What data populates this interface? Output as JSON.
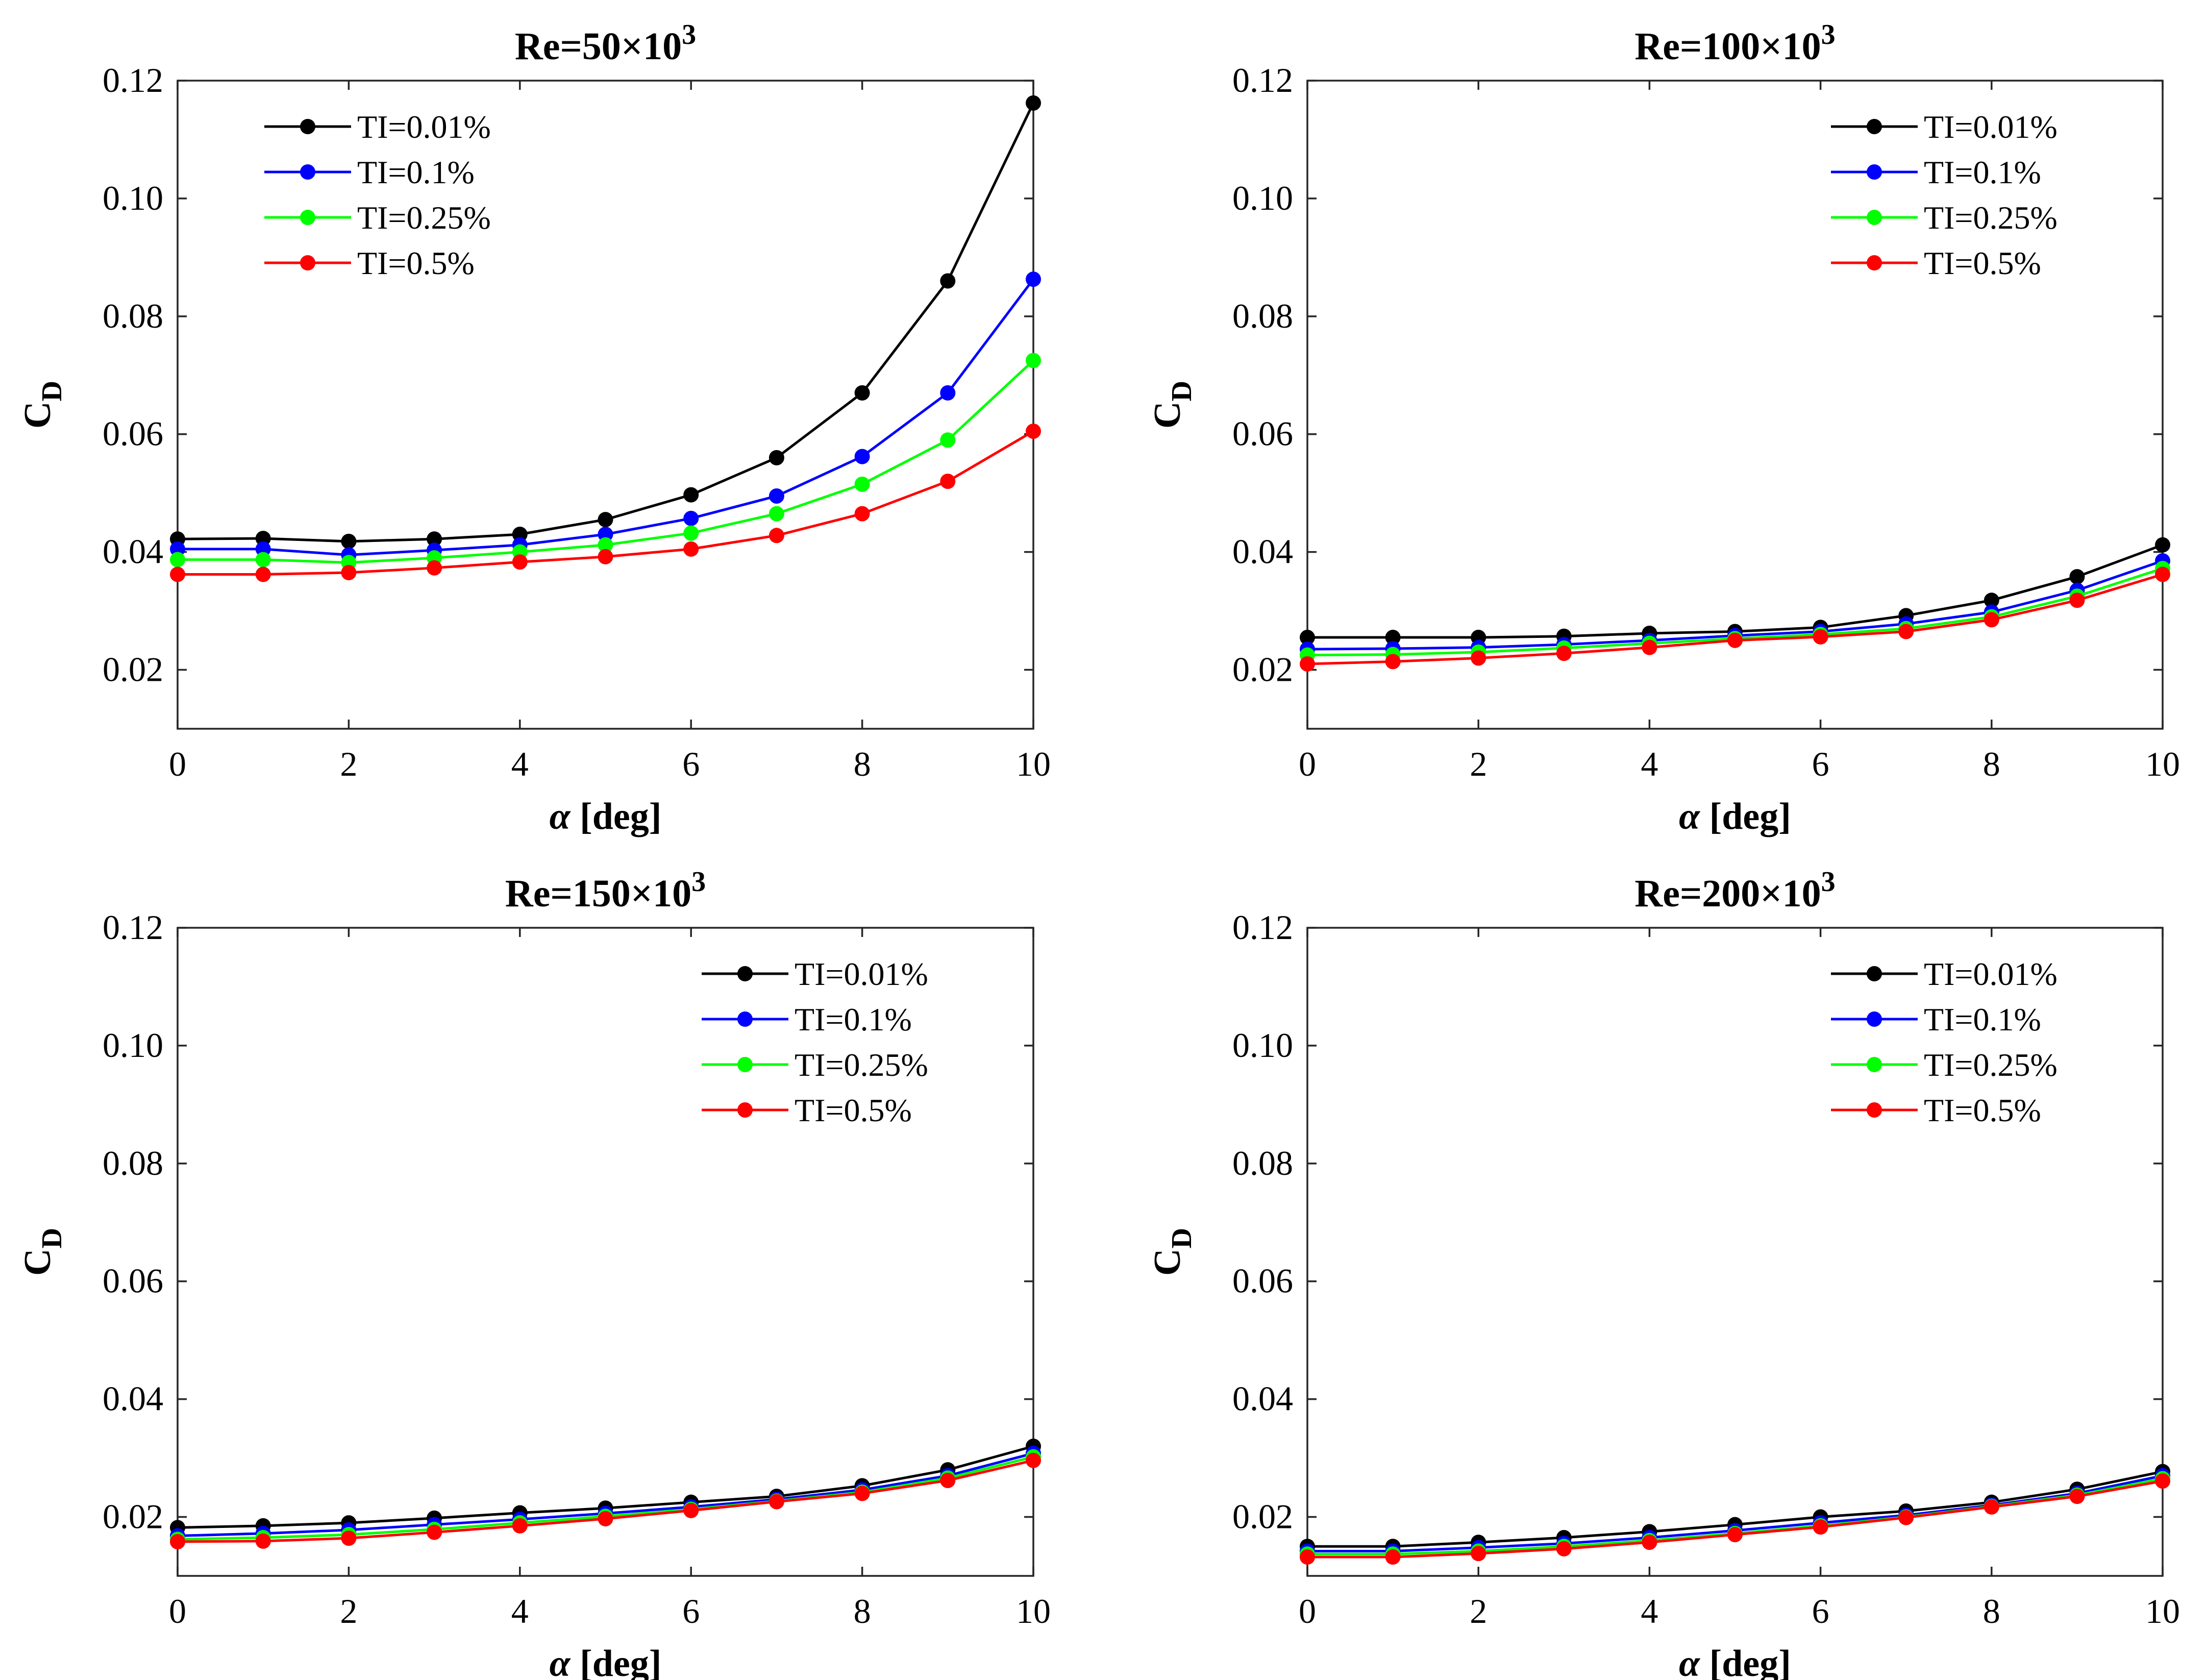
{
  "chart_data": [
    {
      "type": "line",
      "title": "Re=50×10",
      "title_sup": "3",
      "xlabel_symbol": "α",
      "xlabel_unit": " [deg]",
      "ylabel": "C",
      "ylabel_sub": "D",
      "xlim": [
        0,
        10
      ],
      "ylim": [
        0.01,
        0.12
      ],
      "xticks": [
        "0",
        "2",
        "4",
        "6",
        "8",
        "10"
      ],
      "yticks": [
        "0.02",
        "0.04",
        "0.06",
        "0.08",
        "0.10",
        "0.12"
      ],
      "legend_position": "top-left",
      "x": [
        0,
        1,
        2,
        3,
        4,
        5,
        6,
        7,
        8,
        9,
        10
      ],
      "series": [
        {
          "name": "TI=0.01%",
          "color": "#000000",
          "values": [
            0.0422,
            0.0423,
            0.0418,
            0.0422,
            0.043,
            0.0455,
            0.0497,
            0.056,
            0.067,
            0.086,
            0.1162
          ]
        },
        {
          "name": "TI=0.1%",
          "color": "#0000ff",
          "values": [
            0.0405,
            0.0405,
            0.0395,
            0.0403,
            0.0412,
            0.043,
            0.0457,
            0.0495,
            0.0562,
            0.067,
            0.0863
          ]
        },
        {
          "name": "TI=0.25%",
          "color": "#00ff00",
          "values": [
            0.0387,
            0.0387,
            0.0382,
            0.039,
            0.04,
            0.0412,
            0.0432,
            0.0465,
            0.0515,
            0.059,
            0.0725
          ]
        },
        {
          "name": "TI=0.5%",
          "color": "#ff0000",
          "values": [
            0.0362,
            0.0362,
            0.0365,
            0.0373,
            0.0383,
            0.0392,
            0.0405,
            0.0428,
            0.0465,
            0.052,
            0.0605
          ]
        }
      ]
    },
    {
      "type": "line",
      "title": "Re=100×10",
      "title_sup": "3",
      "xlabel_symbol": "α",
      "xlabel_unit": " [deg]",
      "ylabel": "C",
      "ylabel_sub": "D",
      "xlim": [
        0,
        10
      ],
      "ylim": [
        0.01,
        0.12
      ],
      "xticks": [
        "0",
        "2",
        "4",
        "6",
        "8",
        "10"
      ],
      "yticks": [
        "0.02",
        "0.04",
        "0.06",
        "0.08",
        "0.10",
        "0.12"
      ],
      "legend_position": "top-right",
      "x": [
        0,
        1,
        2,
        3,
        4,
        5,
        6,
        7,
        8,
        9,
        10
      ],
      "series": [
        {
          "name": "TI=0.01%",
          "color": "#000000",
          "values": [
            0.0255,
            0.0255,
            0.0255,
            0.0257,
            0.0262,
            0.0265,
            0.0272,
            0.0292,
            0.0318,
            0.0358,
            0.0412
          ]
        },
        {
          "name": "TI=0.1%",
          "color": "#0000ff",
          "values": [
            0.0235,
            0.0236,
            0.0238,
            0.0243,
            0.025,
            0.0258,
            0.0265,
            0.0278,
            0.0298,
            0.0335,
            0.0385
          ]
        },
        {
          "name": "TI=0.25%",
          "color": "#00ff00",
          "values": [
            0.0225,
            0.0226,
            0.023,
            0.0237,
            0.0245,
            0.0253,
            0.026,
            0.027,
            0.029,
            0.0325,
            0.0372
          ]
        },
        {
          "name": "TI=0.5%",
          "color": "#ff0000",
          "values": [
            0.021,
            0.0214,
            0.022,
            0.0228,
            0.0238,
            0.025,
            0.0256,
            0.0265,
            0.0285,
            0.0318,
            0.0362
          ]
        }
      ]
    },
    {
      "type": "line",
      "title": "Re=150×10",
      "title_sup": "3",
      "xlabel_symbol": "α",
      "xlabel_unit": " [deg]",
      "ylabel": "C",
      "ylabel_sub": "D",
      "xlim": [
        0,
        10
      ],
      "ylim": [
        0.01,
        0.12
      ],
      "xticks": [
        "0",
        "2",
        "4",
        "6",
        "8",
        "10"
      ],
      "yticks": [
        "0.02",
        "0.04",
        "0.06",
        "0.08",
        "0.10",
        "0.12"
      ],
      "legend_position": "top-right",
      "x": [
        0,
        1,
        2,
        3,
        4,
        5,
        6,
        7,
        8,
        9,
        10
      ],
      "series": [
        {
          "name": "TI=0.01%",
          "color": "#000000",
          "values": [
            0.0182,
            0.0185,
            0.019,
            0.0198,
            0.0207,
            0.0215,
            0.0225,
            0.0235,
            0.0253,
            0.028,
            0.032
          ]
        },
        {
          "name": "TI=0.1%",
          "color": "#0000ff",
          "values": [
            0.0168,
            0.0172,
            0.0178,
            0.0187,
            0.0196,
            0.0206,
            0.0217,
            0.023,
            0.0246,
            0.027,
            0.0308
          ]
        },
        {
          "name": "TI=0.25%",
          "color": "#00ff00",
          "values": [
            0.0162,
            0.0165,
            0.017,
            0.0179,
            0.019,
            0.0201,
            0.0213,
            0.0227,
            0.0242,
            0.0266,
            0.0302
          ]
        },
        {
          "name": "TI=0.5%",
          "color": "#ff0000",
          "values": [
            0.0158,
            0.0159,
            0.0164,
            0.0174,
            0.0185,
            0.0197,
            0.0211,
            0.0226,
            0.024,
            0.0262,
            0.0296
          ]
        }
      ]
    },
    {
      "type": "line",
      "title": "Re=200×10",
      "title_sup": "3",
      "xlabel_symbol": "α",
      "xlabel_unit": " [deg]",
      "ylabel": "C",
      "ylabel_sub": "D",
      "xlim": [
        0,
        10
      ],
      "ylim": [
        0.01,
        0.12
      ],
      "xticks": [
        "0",
        "2",
        "4",
        "6",
        "8",
        "10"
      ],
      "yticks": [
        "0.02",
        "0.04",
        "0.06",
        "0.08",
        "0.10",
        "0.12"
      ],
      "legend_position": "top-right",
      "x": [
        0,
        1,
        2,
        3,
        4,
        5,
        6,
        7,
        8,
        9,
        10
      ],
      "series": [
        {
          "name": "TI=0.01%",
          "color": "#000000",
          "values": [
            0.015,
            0.015,
            0.0157,
            0.0165,
            0.0175,
            0.0187,
            0.02,
            0.021,
            0.0225,
            0.0247,
            0.0277
          ]
        },
        {
          "name": "TI=0.1%",
          "color": "#0000ff",
          "values": [
            0.0142,
            0.0142,
            0.0148,
            0.0155,
            0.0165,
            0.0177,
            0.019,
            0.0203,
            0.022,
            0.024,
            0.027
          ]
        },
        {
          "name": "TI=0.25%",
          "color": "#00ff00",
          "values": [
            0.0137,
            0.0137,
            0.0142,
            0.015,
            0.016,
            0.0172,
            0.0185,
            0.02,
            0.0218,
            0.0237,
            0.0265
          ]
        },
        {
          "name": "TI=0.5%",
          "color": "#ff0000",
          "values": [
            0.0132,
            0.0132,
            0.0138,
            0.0146,
            0.0157,
            0.017,
            0.0183,
            0.0199,
            0.0217,
            0.0235,
            0.0261
          ]
        }
      ]
    }
  ]
}
